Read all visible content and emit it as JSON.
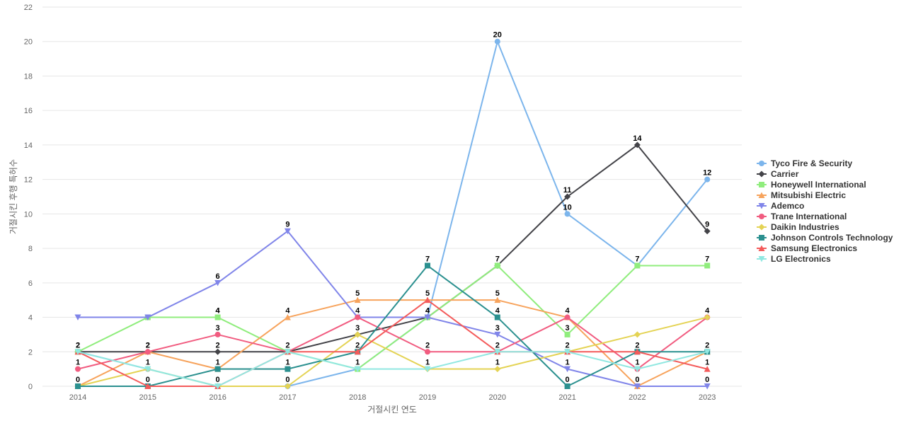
{
  "chart_data": {
    "type": "line",
    "title": "",
    "xlabel": "거절시킨 연도",
    "ylabel": "거절시킨 후행 특허수",
    "x": [
      2014,
      2015,
      2016,
      2017,
      2018,
      2019,
      2020,
      2021,
      2022,
      2023
    ],
    "ylim": [
      0,
      22
    ],
    "yticks": [
      0,
      2,
      4,
      6,
      8,
      10,
      12,
      14,
      16,
      18,
      20,
      22
    ],
    "grid": true,
    "legend_position": "right",
    "series": [
      {
        "name": "Tyco Fire & Security",
        "color": "#7cb5ec",
        "marker": "circle",
        "values": [
          2,
          1,
          0,
          0,
          1,
          4,
          20,
          10,
          7,
          12
        ]
      },
      {
        "name": "Carrier",
        "color": "#434348",
        "marker": "diamond",
        "values": [
          2,
          2,
          2,
          2,
          3,
          4,
          7,
          11,
          14,
          9
        ]
      },
      {
        "name": "Honeywell International",
        "color": "#90ed7d",
        "marker": "square",
        "values": [
          2,
          4,
          4,
          2,
          1,
          4,
          7,
          3,
          7,
          7
        ]
      },
      {
        "name": "Mitsubishi Electric",
        "color": "#f7a35c",
        "marker": "triangle",
        "values": [
          0,
          2,
          1,
          4,
          5,
          5,
          5,
          4,
          0,
          2
        ]
      },
      {
        "name": "Ademco",
        "color": "#8085e9",
        "marker": "triangle-down",
        "values": [
          4,
          4,
          6,
          9,
          4,
          4,
          3,
          1,
          0,
          0
        ]
      },
      {
        "name": "Trane International",
        "color": "#f15c80",
        "marker": "circle",
        "values": [
          1,
          2,
          3,
          2,
          4,
          2,
          2,
          4,
          1,
          4
        ]
      },
      {
        "name": "Daikin Industries",
        "color": "#e4d354",
        "marker": "diamond",
        "values": [
          0,
          1,
          0,
          0,
          3,
          1,
          1,
          2,
          3,
          4
        ]
      },
      {
        "name": "Johnson Controls Technology",
        "color": "#2b908f",
        "marker": "square",
        "values": [
          0,
          0,
          1,
          1,
          2,
          7,
          4,
          0,
          2,
          2
        ]
      },
      {
        "name": "Samsung Electronics",
        "color": "#f45b5b",
        "marker": "triangle",
        "values": [
          2,
          0,
          0,
          2,
          2,
          5,
          2,
          2,
          2,
          1
        ]
      },
      {
        "name": "LG Electronics",
        "color": "#91e8e1",
        "marker": "triangle-down",
        "values": [
          2,
          1,
          0,
          2,
          1,
          1,
          2,
          2,
          1,
          2
        ]
      }
    ],
    "data_labels_top": [
      [
        2,
        2,
        4,
        4,
        4,
        4,
        20,
        10,
        7,
        12
      ],
      [
        2,
        2,
        4,
        9,
        5,
        7,
        7,
        11,
        14,
        9
      ],
      [
        1,
        1,
        6,
        2,
        3,
        5,
        5,
        4,
        2,
        7
      ],
      [
        0,
        0,
        3,
        1,
        2,
        4,
        4,
        3,
        1,
        4
      ],
      [
        null,
        null,
        2,
        0,
        1,
        2,
        3,
        2,
        0,
        2
      ],
      [
        null,
        null,
        1,
        null,
        null,
        1,
        2,
        1,
        null,
        1
      ],
      [
        null,
        null,
        0,
        null,
        null,
        null,
        1,
        0,
        null,
        0
      ]
    ]
  }
}
